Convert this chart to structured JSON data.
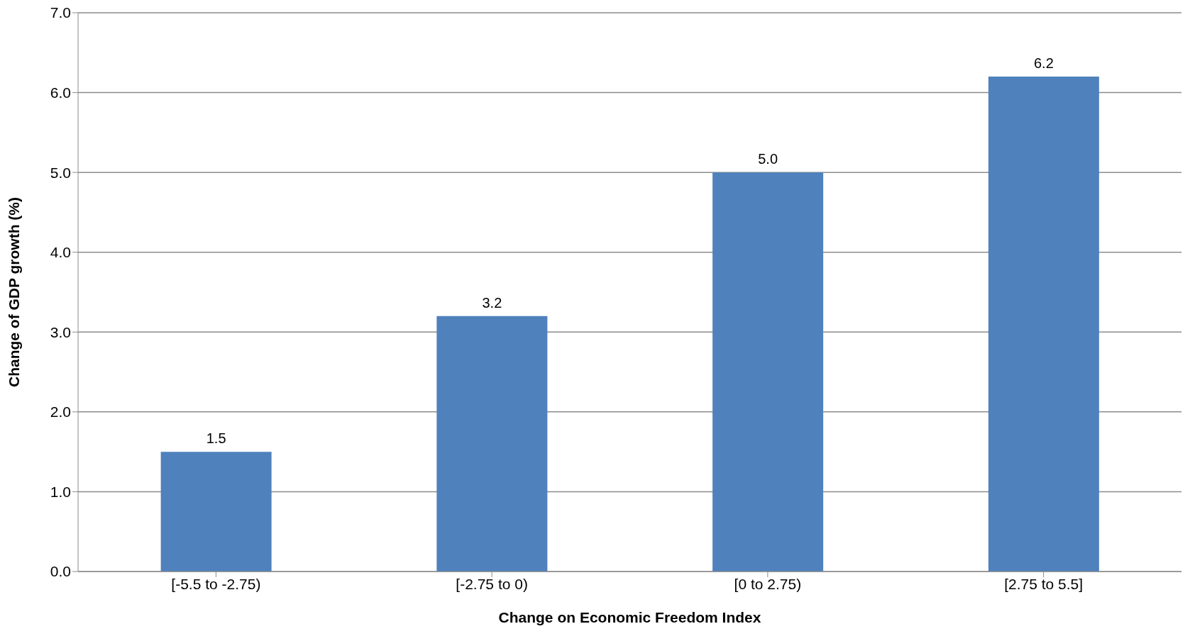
{
  "chart_data": {
    "type": "bar",
    "xlabel": "Change on Economic Freedom Index",
    "ylabel": "Change of GDP growth (%)",
    "categories": [
      "[-5.5 to -2.75)",
      "[-2.75 to 0)",
      "[0 to 2.75)",
      "[2.75 to 5.5]"
    ],
    "values": [
      1.5,
      3.2,
      5.0,
      6.2
    ],
    "color": "#4f81bd",
    "value_labels": [
      "1.5",
      "3.2",
      "5.0",
      "6.2"
    ],
    "ylim": [
      0,
      7
    ],
    "yticks": [
      {
        "value": 0,
        "label": "0.0"
      },
      {
        "value": 1,
        "label": "1.0"
      },
      {
        "value": 2,
        "label": "2.0"
      },
      {
        "value": 3,
        "label": "3.0"
      },
      {
        "value": 4,
        "label": "4.0"
      },
      {
        "value": 5,
        "label": "5.0"
      },
      {
        "value": 6,
        "label": "6.0"
      },
      {
        "value": 7,
        "label": "7.0"
      }
    ],
    "grid": "y"
  }
}
